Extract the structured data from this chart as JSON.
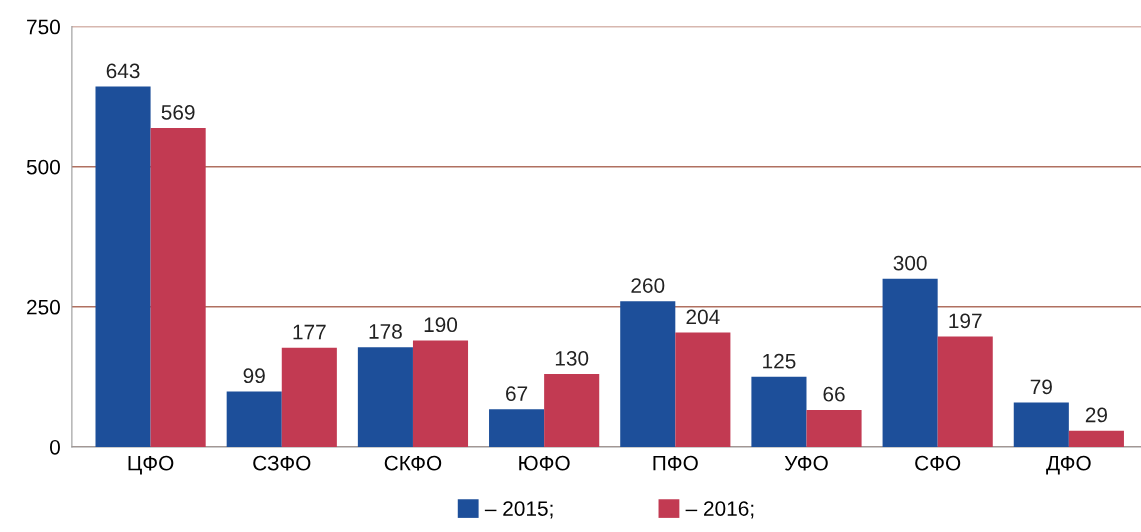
{
  "chart_data": {
    "type": "bar",
    "categories": [
      "ЦФО",
      "СЗФО",
      "СКФО",
      "ЮФО",
      "ПФО",
      "УФО",
      "СФО",
      "ДФО"
    ],
    "series": [
      {
        "name": "– 2015;",
        "color": "#1d4f9a",
        "values": [
          643,
          99,
          178,
          67,
          260,
          125,
          300,
          79
        ]
      },
      {
        "name": "– 2016;",
        "color": "#c23a52",
        "values": [
          569,
          177,
          190,
          130,
          204,
          66,
          197,
          29
        ]
      }
    ],
    "ylim": [
      0,
      750
    ],
    "yticks": [
      0,
      250,
      500,
      750
    ],
    "grid": "y",
    "legend": "bottom",
    "data_labels": true
  }
}
